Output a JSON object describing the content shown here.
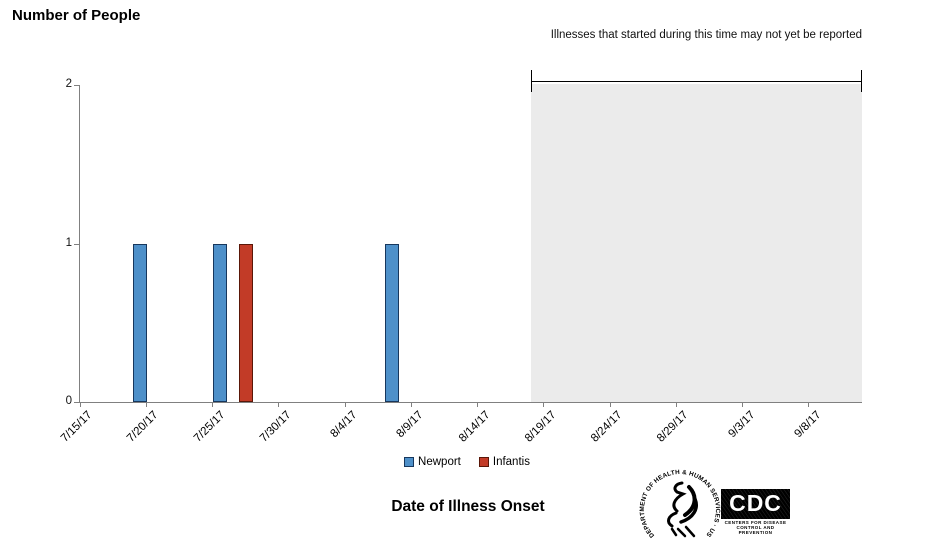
{
  "page": {
    "title": "Number of People",
    "x_axis_title": "Date of Illness Onset",
    "annotation": "Illnesses that started during this time may not yet be reported"
  },
  "chart_data": {
    "type": "bar",
    "title": "Number of People",
    "xlabel": "Date of Illness Onset",
    "ylabel": "Number of People",
    "ylim": [
      0,
      2
    ],
    "y_ticks": [
      0,
      1,
      2
    ],
    "x_range": {
      "start": "7/15/17",
      "end": "9/12/17"
    },
    "x_tick_labels": [
      "7/15/17",
      "7/20/17",
      "7/25/17",
      "7/30/17",
      "8/4/17",
      "8/9/17",
      "8/14/17",
      "8/19/17",
      "8/24/17",
      "8/29/17",
      "9/3/17",
      "9/8/17"
    ],
    "bin_days": 1,
    "series": [
      {
        "name": "Newport",
        "color": "#4e90c9",
        "border": "#17375d",
        "points": [
          {
            "date": "7/19/17",
            "count": 1
          },
          {
            "date": "7/25/17",
            "count": 1
          },
          {
            "date": "8/7/17",
            "count": 1
          }
        ]
      },
      {
        "name": "Infantis",
        "color": "#c23b27",
        "border": "#5a1708",
        "points": [
          {
            "date": "7/27/17",
            "count": 1
          }
        ]
      }
    ],
    "shaded_region": {
      "start": "8/18/17",
      "end": "9/12/17",
      "color": "#ebebeb",
      "label": "Illnesses that started during this time may not yet be reported"
    },
    "axis_color": "#808080",
    "grid": false,
    "legend_position": "bottom"
  },
  "logos": {
    "hhs_circular_text": "DEPARTMENT OF HEALTH & HUMAN SERVICES · USA",
    "cdc_acronym": "CDC",
    "cdc_caption_line1": "CENTERS FOR DISEASE",
    "cdc_caption_line2": "CONTROL AND PREVENTION"
  }
}
